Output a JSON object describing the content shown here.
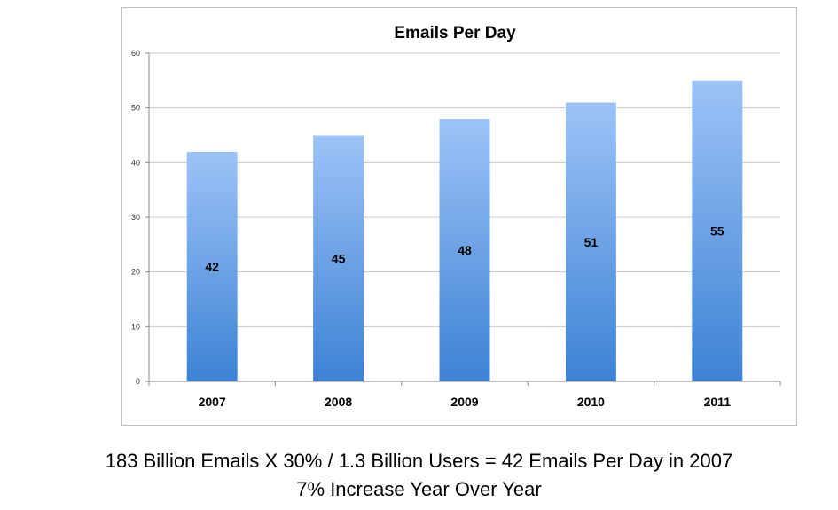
{
  "chart_data": {
    "type": "bar",
    "title": "Emails Per Day",
    "xlabel": "",
    "ylabel": "",
    "categories": [
      "2007",
      "2008",
      "2009",
      "2010",
      "2011"
    ],
    "values": [
      42,
      45,
      48,
      51,
      55
    ],
    "data_labels": [
      "42",
      "45",
      "48",
      "51",
      "55"
    ],
    "ylim": [
      0,
      60
    ],
    "yticks": [
      0,
      10,
      20,
      30,
      40,
      50,
      60
    ],
    "grid": true,
    "legend": "none",
    "bar_color_top": "#9dc3f7",
    "bar_color_bottom": "#3d82d4"
  },
  "caption": {
    "line1": "183 Billion Emails X 30% / 1.3 Billion Users =  42 Emails Per Day in 2007",
    "line2": "7% Increase Year Over Year"
  }
}
